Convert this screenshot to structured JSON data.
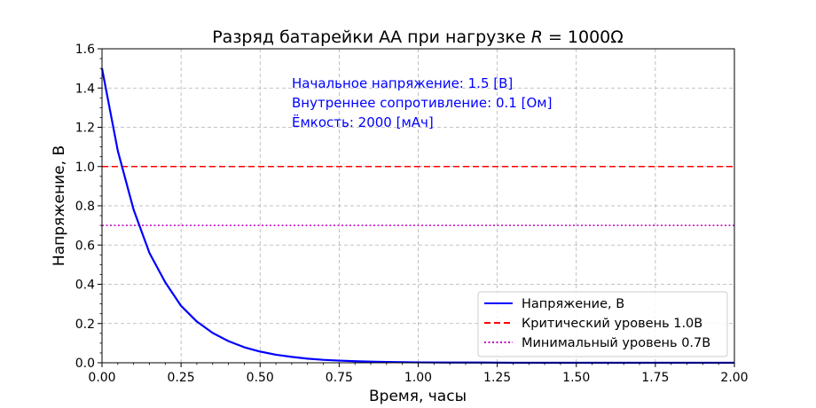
{
  "chart_data": {
    "type": "line",
    "title_prefix": "Разряд батарейки АА при нагрузке ",
    "title_math_var": "R",
    "title_math_rest": " = 1000Ω",
    "xlabel": "Время, часы",
    "ylabel": "Напряжение, В",
    "xlim": [
      0,
      2
    ],
    "ylim": [
      0,
      1.6
    ],
    "x_ticks": [
      "0.00",
      "0.25",
      "0.50",
      "0.75",
      "1.00",
      "1.25",
      "1.50",
      "1.75",
      "2.00"
    ],
    "y_ticks": [
      "0.0",
      "0.2",
      "0.4",
      "0.6",
      "0.8",
      "1.0",
      "1.2",
      "1.4",
      "1.6"
    ],
    "grid": true,
    "legend_position": "bottom-right",
    "series": [
      {
        "name": "Напряжение, В",
        "color": "#0000ff",
        "style": "solid",
        "x": [
          0.0,
          0.05,
          0.1,
          0.15,
          0.2,
          0.25,
          0.3,
          0.35,
          0.4,
          0.45,
          0.5,
          0.55,
          0.6,
          0.65,
          0.7,
          0.75,
          0.8,
          0.85,
          0.9,
          0.95,
          1.0,
          1.1,
          1.2,
          1.3,
          1.4,
          1.5,
          1.6,
          1.7,
          1.8,
          1.9,
          2.0
        ],
        "y": [
          1.5,
          1.08,
          0.78,
          0.56,
          0.41,
          0.29,
          0.21,
          0.152,
          0.11,
          0.079,
          0.057,
          0.041,
          0.03,
          0.021,
          0.015,
          0.011,
          0.008,
          0.006,
          0.004,
          0.003,
          0.002,
          0.001,
          0.001,
          0.0,
          0.0,
          0.0,
          0.0,
          0.0,
          0.0,
          0.0,
          0.0
        ]
      },
      {
        "name": "Критический уровень 1.0В",
        "color": "#ff0000",
        "style": "dashed",
        "hline": 1.0
      },
      {
        "name": "Минимальный уровень 0.7В",
        "color": "#bf00bf",
        "style": "dotted",
        "hline": 0.7
      }
    ],
    "annotations": [
      "Начальное напряжение: 1.5 [В]",
      "Внутреннее сопротивление: 0.1 [Ом]",
      "Ёмкость: 2000 [мАч]"
    ]
  }
}
